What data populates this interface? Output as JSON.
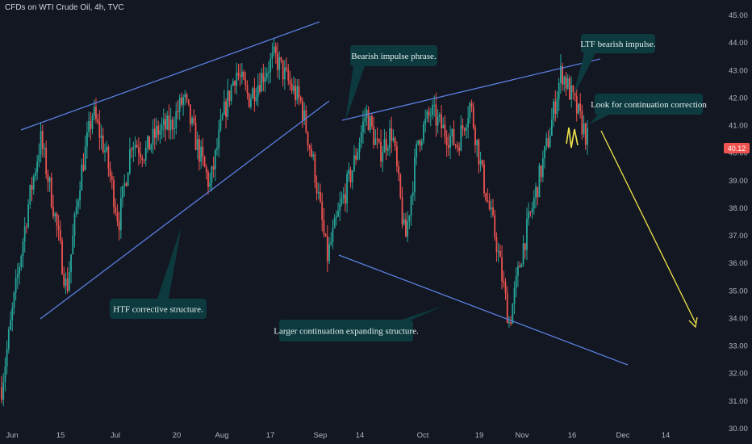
{
  "header": {
    "symbol_title": "CFDs on WTI Crude Oil, 4h, TVC"
  },
  "colors": {
    "background": "#131722",
    "up_candle": "#26a69a",
    "down_candle": "#ef5350",
    "trendline": "#5a7fe0",
    "projection": "#f0e44a",
    "callout_fill": "#0d3a3f",
    "price_tag": "#ef5350"
  },
  "chart_data": {
    "type": "candlestick",
    "title": "CFDs on WTI Crude Oil, 4h, TVC",
    "x_ticks": [
      "Jun",
      "15",
      "Jul",
      "20",
      "Aug",
      "17",
      "Sep",
      "14",
      "Oct",
      "19",
      "Nov",
      "16",
      "Dec",
      "14"
    ],
    "y_ticks": [
      30,
      31,
      32,
      33,
      34,
      35,
      36,
      37,
      38,
      39,
      40,
      41,
      42,
      43,
      44,
      45
    ],
    "y_tick_labels": [
      "30.00",
      "31.00",
      "32.00",
      "33.00",
      "34.00",
      "35.00",
      "36.00",
      "37.00",
      "38.00",
      "39.00",
      "40.00",
      "41.00",
      "42.00",
      "43.00",
      "44.00",
      "45.00"
    ],
    "ylim": [
      30,
      45
    ],
    "last_price": "40.12",
    "price_path": [
      [
        0,
        31.5
      ],
      [
        1,
        34.8
      ],
      [
        2,
        38.0
      ],
      [
        3,
        40.5
      ],
      [
        4,
        38.0
      ],
      [
        5,
        35.0
      ],
      [
        6,
        39.0
      ],
      [
        7,
        41.5
      ],
      [
        8,
        40.0
      ],
      [
        9,
        37.5
      ],
      [
        10,
        40.5
      ],
      [
        11,
        40.0
      ],
      [
        12,
        40.8
      ],
      [
        13,
        41.0
      ],
      [
        14,
        42.0
      ],
      [
        15,
        40.3
      ],
      [
        16,
        38.8
      ],
      [
        17,
        41.3
      ],
      [
        18,
        43.0
      ],
      [
        19,
        42.0
      ],
      [
        20,
        42.8
      ],
      [
        21,
        43.5
      ],
      [
        22,
        42.6
      ],
      [
        23,
        41.8
      ],
      [
        24,
        39.5
      ],
      [
        25,
        36.2
      ],
      [
        26,
        38.0
      ],
      [
        27,
        39.5
      ],
      [
        28,
        41.5
      ],
      [
        29,
        40.0
      ],
      [
        30,
        40.8
      ],
      [
        31,
        36.8
      ],
      [
        32,
        40.5
      ],
      [
        33,
        41.5
      ],
      [
        34,
        40.8
      ],
      [
        35,
        40.3
      ],
      [
        36,
        41.8
      ],
      [
        37,
        39.0
      ],
      [
        38,
        36.8
      ],
      [
        39,
        33.8
      ],
      [
        40,
        36.5
      ],
      [
        41,
        38.5
      ],
      [
        42,
        40.5
      ],
      [
        43,
        43.0
      ],
      [
        44,
        41.8
      ],
      [
        45,
        40.5
      ]
    ],
    "annotations": [
      {
        "id": "htf",
        "text": "HTF corrective structure."
      },
      {
        "id": "bearish",
        "text": "Bearish impulse phrase."
      },
      {
        "id": "ltf",
        "text": "LTF bearish impulse."
      },
      {
        "id": "continuation",
        "text": "Look for continuation correction"
      },
      {
        "id": "larger",
        "text": "Larger continuation expanding structure."
      }
    ]
  }
}
